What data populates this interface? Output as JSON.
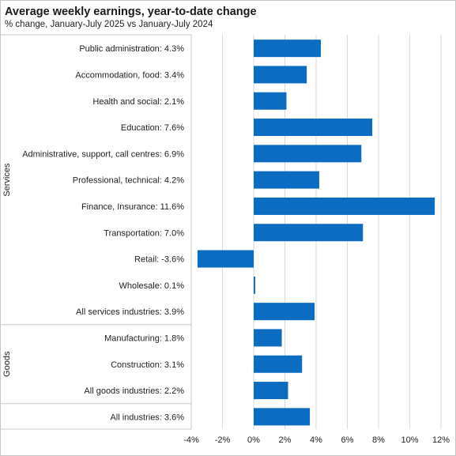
{
  "header": {
    "title": "Average weekly earnings, year-to-date change",
    "subtitle": "% change, January-July 2025 vs January-July 2024"
  },
  "chart_data": {
    "type": "bar",
    "orientation": "horizontal",
    "title": "Average weekly earnings, year-to-date change",
    "subtitle": "% change, January-July 2025 vs January-July 2024",
    "xlim": [
      -4,
      12
    ],
    "x_ticks": [
      -4,
      -2,
      0,
      2,
      4,
      6,
      8,
      10,
      12
    ],
    "x_tick_labels": [
      "-4%",
      "-2%",
      "0%",
      "2%",
      "4%",
      "6%",
      "8%",
      "10%",
      "12%"
    ],
    "grid": "vertical",
    "bar_color": "#0b6cc2",
    "categories": [
      "Public administration:  4.3%",
      "Accommodation, food:  3.4%",
      "Health and social:  2.1%",
      "Education:  7.6%",
      "Administrative, support, call centres:  6.9%",
      "Professional, technical:  4.2%",
      "Finance, Insurance:  11.6%",
      "Transportation:  7.0%",
      "Retail:  -3.6%",
      "Wholesale:  0.1%",
      "All services industries:  3.9%",
      "Manufacturing:  1.8%",
      "Construction:  3.1%",
      "All goods industries:  2.2%",
      "All industries:  3.6%"
    ],
    "values": [
      4.3,
      3.4,
      2.1,
      7.6,
      6.9,
      4.2,
      11.6,
      7.0,
      -3.6,
      0.1,
      3.9,
      1.8,
      3.1,
      2.2,
      3.6
    ],
    "groups": [
      {
        "label": "Services",
        "start": 0,
        "end": 10
      },
      {
        "label": "Goods",
        "start": 11,
        "end": 13
      },
      {
        "label": "",
        "start": 14,
        "end": 14
      }
    ]
  }
}
